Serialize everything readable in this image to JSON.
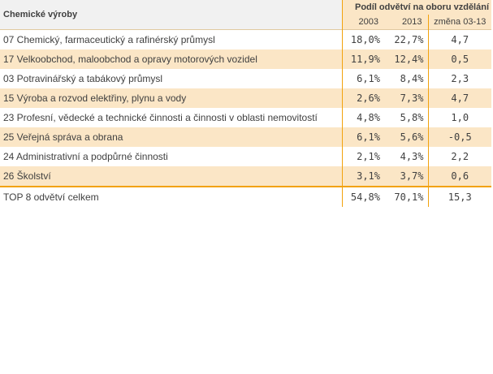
{
  "header": {
    "title": "Chemické výroby",
    "group_label": "Podíl odvětví na oboru vzdělání",
    "col_2003": "2003",
    "col_2013": "2013",
    "col_change": "změna 03-13"
  },
  "rows": [
    {
      "name": "07 Chemický, farmaceutický a rafinérský průmysl",
      "v2003": "18,0%",
      "v2013": "22,7%",
      "change": "4,7"
    },
    {
      "name": "17 Velkoobchod, maloobchod a opravy motorových vozidel",
      "v2003": "11,9%",
      "v2013": "12,4%",
      "change": "0,5"
    },
    {
      "name": "03 Potravinářský a tabákový průmysl",
      "v2003": "6,1%",
      "v2013": "8,4%",
      "change": "2,3"
    },
    {
      "name": "15 Výroba a rozvod elektřiny, plynu a vody",
      "v2003": "2,6%",
      "v2013": "7,3%",
      "change": "4,7"
    },
    {
      "name": "23 Profesní, vědecké a technické činnosti a činnosti v oblasti nemovitostí",
      "v2003": "4,8%",
      "v2013": "5,8%",
      "change": "1,0"
    },
    {
      "name": "25 Veřejná správa a obrana",
      "v2003": "6,1%",
      "v2013": "5,6%",
      "change": "-0,5"
    },
    {
      "name": "24 Administrativní a podpůrné činnosti",
      "v2003": "2,1%",
      "v2013": "4,3%",
      "change": "2,2"
    },
    {
      "name": "26 Školství",
      "v2003": "3,1%",
      "v2013": "3,7%",
      "change": "0,6"
    }
  ],
  "total": {
    "name": "TOP 8 odvětví celkem",
    "v2003": "54,8%",
    "v2013": "70,1%",
    "change": "15,3"
  },
  "colors": {
    "accent": "#f2a20d",
    "band": "#fbe6c6",
    "text": "#404040"
  }
}
